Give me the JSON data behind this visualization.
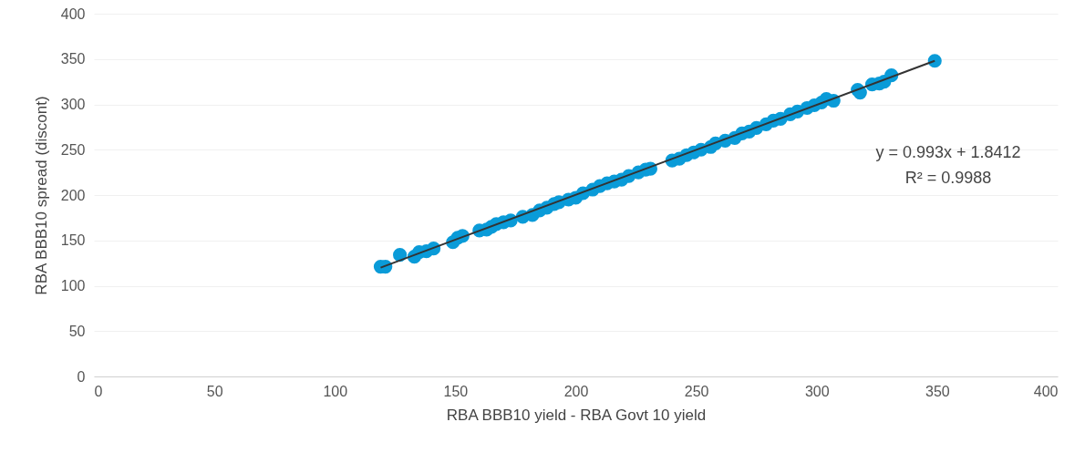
{
  "chart_data": {
    "type": "scatter",
    "xlabel": "RBA BBB10 yield - RBA Govt 10 yield",
    "ylabel": "RBA BBB10 spread (discont)",
    "xlim": [
      0,
      400
    ],
    "xticks": [
      0,
      50,
      100,
      150,
      200,
      250,
      300,
      350,
      400
    ],
    "ylim": [
      0,
      400
    ],
    "yticks": [
      0,
      50,
      100,
      150,
      200,
      250,
      300,
      350,
      400
    ],
    "grid": "y",
    "annotations": [
      "y = 0.993x + 1.8412",
      "R² = 0.9988"
    ],
    "series": [
      {
        "marker": "circle",
        "color": "#0a9bd8",
        "x": [
          119,
          121,
          127,
          133,
          135,
          138,
          141,
          149,
          151,
          153,
          160,
          163,
          165,
          167,
          170,
          173,
          178,
          182,
          185,
          188,
          191,
          193,
          197,
          200,
          203,
          207,
          210,
          213,
          216,
          219,
          222,
          226,
          229,
          231,
          240,
          243,
          246,
          249,
          252,
          256,
          258,
          262,
          266,
          269,
          272,
          275,
          279,
          282,
          285,
          289,
          292,
          296,
          299,
          302,
          304,
          307,
          317,
          318,
          323,
          326,
          328,
          331,
          349
        ],
        "values": [
          121,
          121,
          134,
          132,
          137,
          138,
          141,
          148,
          153,
          155,
          161,
          162,
          165,
          168,
          170,
          172,
          176,
          178,
          183,
          186,
          190,
          192,
          195,
          197,
          202,
          206,
          210,
          213,
          215,
          217,
          221,
          225,
          228,
          229,
          238,
          240,
          244,
          247,
          250,
          253,
          257,
          260,
          263,
          268,
          270,
          274,
          278,
          282,
          284,
          289,
          292,
          296,
          299,
          302,
          306,
          304,
          316,
          313,
          322,
          323,
          325,
          332,
          348
        ]
      },
      {
        "type": "line",
        "color": "#333333",
        "x": [
          119,
          349
        ],
        "values": [
          120,
          348
        ]
      }
    ]
  }
}
